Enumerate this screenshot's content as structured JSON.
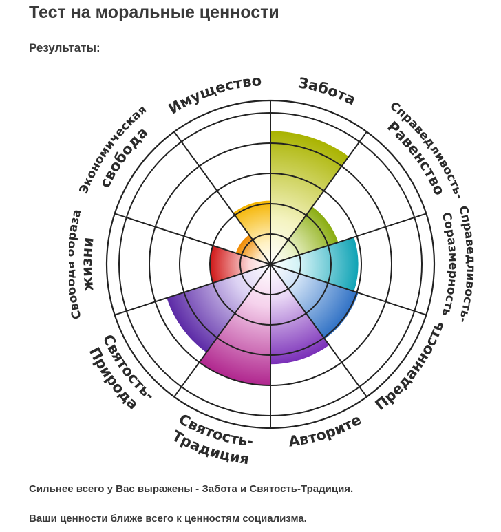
{
  "page": {
    "title": "Тест на моральные ценности",
    "subtitle": "Результаты:",
    "result_strongest": "Сильнее всего у Вас выражены - Забота и Святость-Традиция.",
    "result_closest": "Ваши ценности ближе всего к ценностям социализма."
  },
  "chart_data": {
    "type": "polar-area",
    "rmax": 5,
    "categories": [
      {
        "lines": [
          "Забота"
        ],
        "value": 4.4,
        "color_outer": "#a9b300",
        "color_inner": "#f4f3c0"
      },
      {
        "lines": [
          "Справедливость-",
          "Равенство"
        ],
        "value": 2.35,
        "color_outer": "#8aac10",
        "color_inner": "#eaf2c8"
      },
      {
        "lines": [
          "Справедливость-",
          "Соразмерность"
        ],
        "value": 2.9,
        "color_outer": "#0fa3b5",
        "color_inner": "#cff1f5"
      },
      {
        "lines": [
          "Преданность"
        ],
        "value": 3.05,
        "color_outer": "#2d6fc4",
        "color_inner": "#cde0f5"
      },
      {
        "lines": [
          "Авторите"
        ],
        "value": 3.3,
        "color_outer": "#7a2fb8",
        "color_inner": "#e8d6f5"
      },
      {
        "lines": [
          "Святость-",
          "Традиция"
        ],
        "value": 4.0,
        "color_outer": "#b0268e",
        "color_inner": "#f5d2ec"
      },
      {
        "lines": [
          "Святость-",
          "Природа"
        ],
        "value": 3.6,
        "color_outer": "#5c2aa6",
        "color_inner": "#dcd2f3"
      },
      {
        "lines": [
          "Свобода образа",
          "жизни"
        ],
        "value": 2.0,
        "color_outer": "#d01818",
        "color_inner": "#fbd8d8"
      },
      {
        "lines": [
          "Экономическая",
          "свобода"
        ],
        "value": 1.2,
        "color_outer": "#f08a00",
        "color_inner": "#fde8c5"
      },
      {
        "lines": [
          "Имущество"
        ],
        "value": 2.1,
        "color_outer": "#f5b400",
        "color_inner": "#fff1c2"
      }
    ]
  }
}
